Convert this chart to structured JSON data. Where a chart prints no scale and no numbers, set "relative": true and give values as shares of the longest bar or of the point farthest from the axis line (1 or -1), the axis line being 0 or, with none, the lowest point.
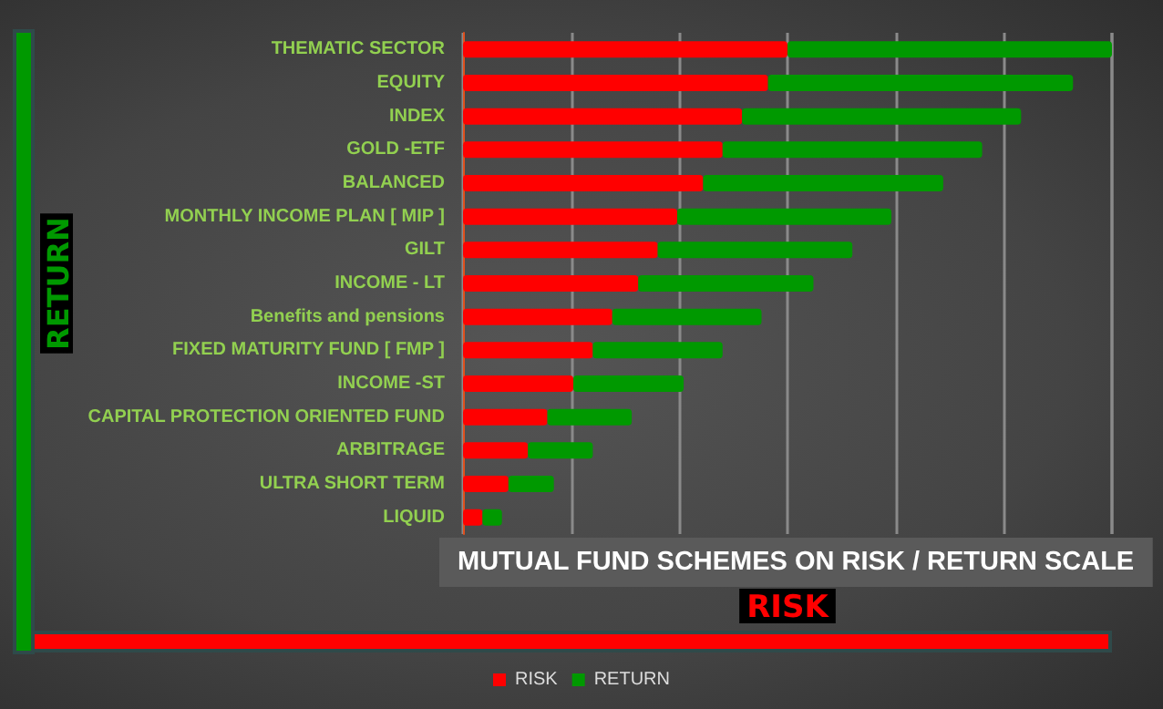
{
  "chart_data": {
    "type": "bar",
    "orientation": "horizontal",
    "stacked": true,
    "relative": true,
    "title": "MUTUAL FUND SCHEMES ON RISK / RETURN SCALE",
    "xlabel": "RISK",
    "ylabel": "RETURN",
    "categories": [
      "THEMATIC SECTOR",
      "EQUITY",
      "INDEX",
      "GOLD -ETF",
      "BALANCED",
      "MONTHLY INCOME PLAN [ MIP ]",
      "GILT",
      "INCOME - LT",
      "Benefits and pensions",
      "FIXED MATURITY FUND [ FMP ]",
      "INCOME -ST",
      "CAPITAL PROTECTION ORIENTED FUND",
      "ARBITRAGE",
      "ULTRA SHORT TERM",
      "LIQUID"
    ],
    "series": [
      {
        "name": "RISK",
        "color": "#ff0000",
        "values": [
          0.5,
          0.47,
          0.43,
          0.4,
          0.37,
          0.33,
          0.3,
          0.27,
          0.23,
          0.2,
          0.17,
          0.13,
          0.1,
          0.07,
          0.03
        ]
      },
      {
        "name": "RETURN",
        "color": "#009900",
        "values": [
          0.5,
          0.47,
          0.43,
          0.4,
          0.37,
          0.33,
          0.3,
          0.27,
          0.23,
          0.2,
          0.17,
          0.13,
          0.1,
          0.07,
          0.03
        ]
      }
    ],
    "grid": "x",
    "legend": "bottom"
  }
}
